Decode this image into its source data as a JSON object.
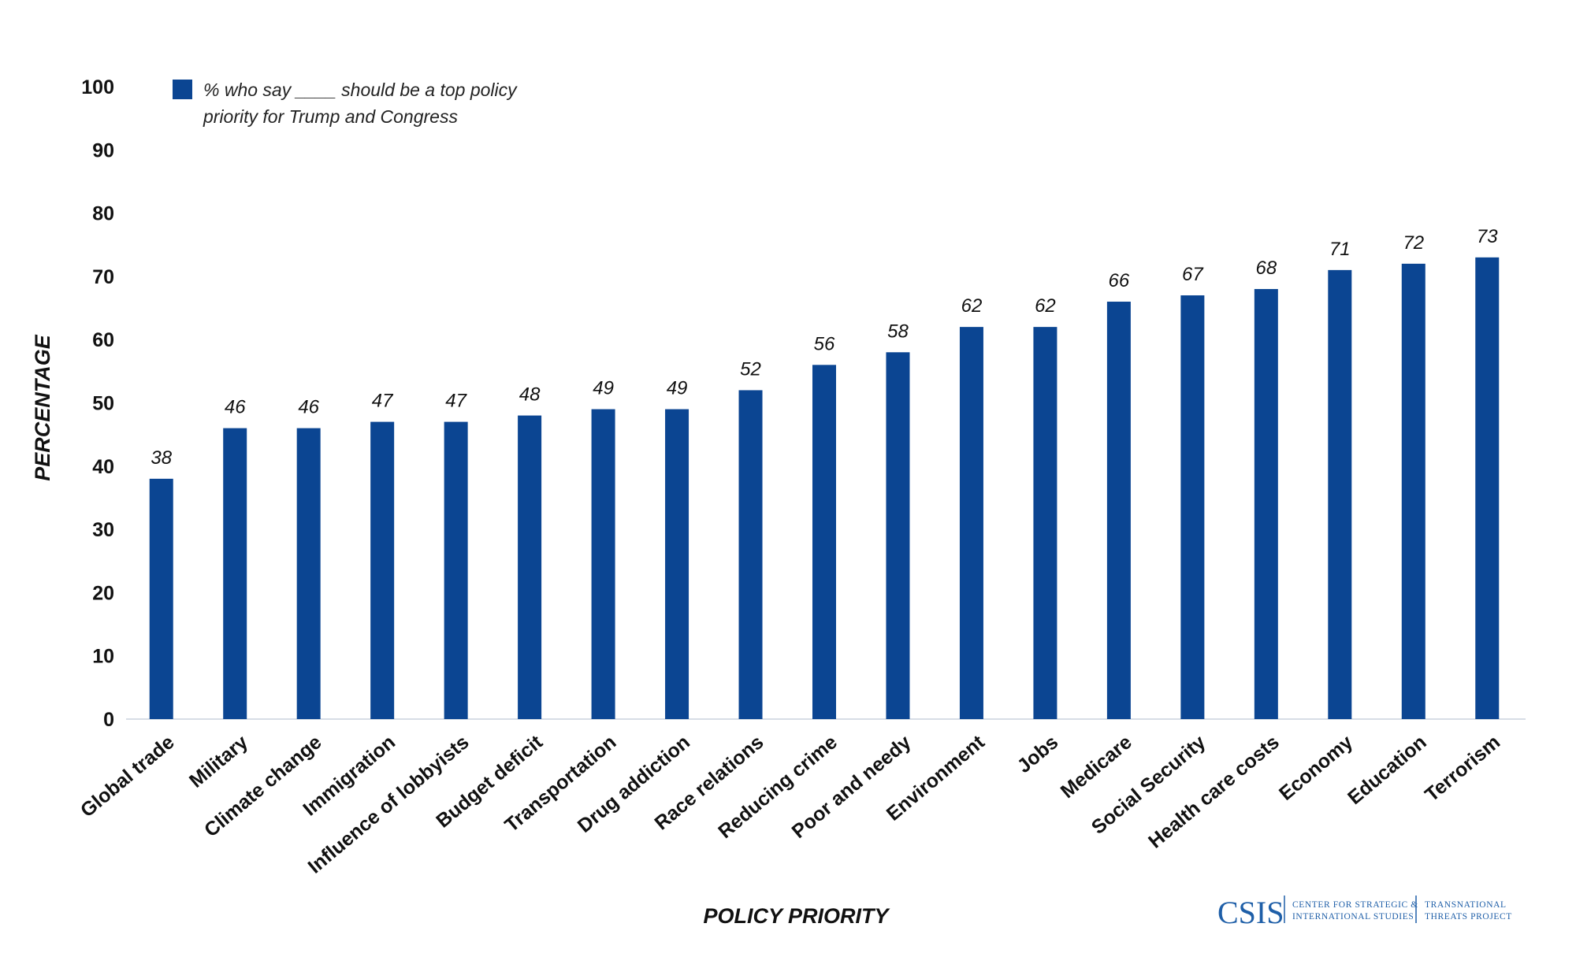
{
  "chart_data": {
    "type": "bar",
    "ylabel": "PERCENTAGE",
    "xlabel": "POLICY PRIORITY",
    "ylim": [
      0,
      100
    ],
    "yticks": [
      "0",
      "10",
      "20",
      "30",
      "40",
      "50",
      "60",
      "70",
      "80",
      "90",
      "100"
    ],
    "grid": false,
    "legend": {
      "placement": "top-left",
      "lines": [
        "% who say ____ should be a top policy",
        "priority for Trump and Congress"
      ]
    },
    "bar_color": "#0B4592",
    "categories": [
      "Global trade",
      "Military",
      "Climate change",
      "Immigration",
      "Influence of lobbyists",
      "Budget deficit",
      "Transportation",
      "Drug addiction",
      "Race relations",
      "Reducing crime",
      "Poor and needy",
      "Environment",
      "Jobs",
      "Medicare",
      "Social Security",
      "Health care costs",
      "Economy",
      "Education",
      "Terrorism"
    ],
    "series": [
      {
        "values": [
          38,
          46,
          46,
          47,
          47,
          48,
          49,
          49,
          52,
          56,
          58,
          62,
          62,
          66,
          67,
          68,
          71,
          72,
          73
        ]
      }
    ]
  },
  "logo": {
    "main": "CSIS",
    "line1": "CENTER FOR STRATEGIC &",
    "line2": "INTERNATIONAL STUDIES",
    "line3": "TRANSNATIONAL",
    "line4": "THREATS PROJECT",
    "color": "#1F5FA8"
  }
}
